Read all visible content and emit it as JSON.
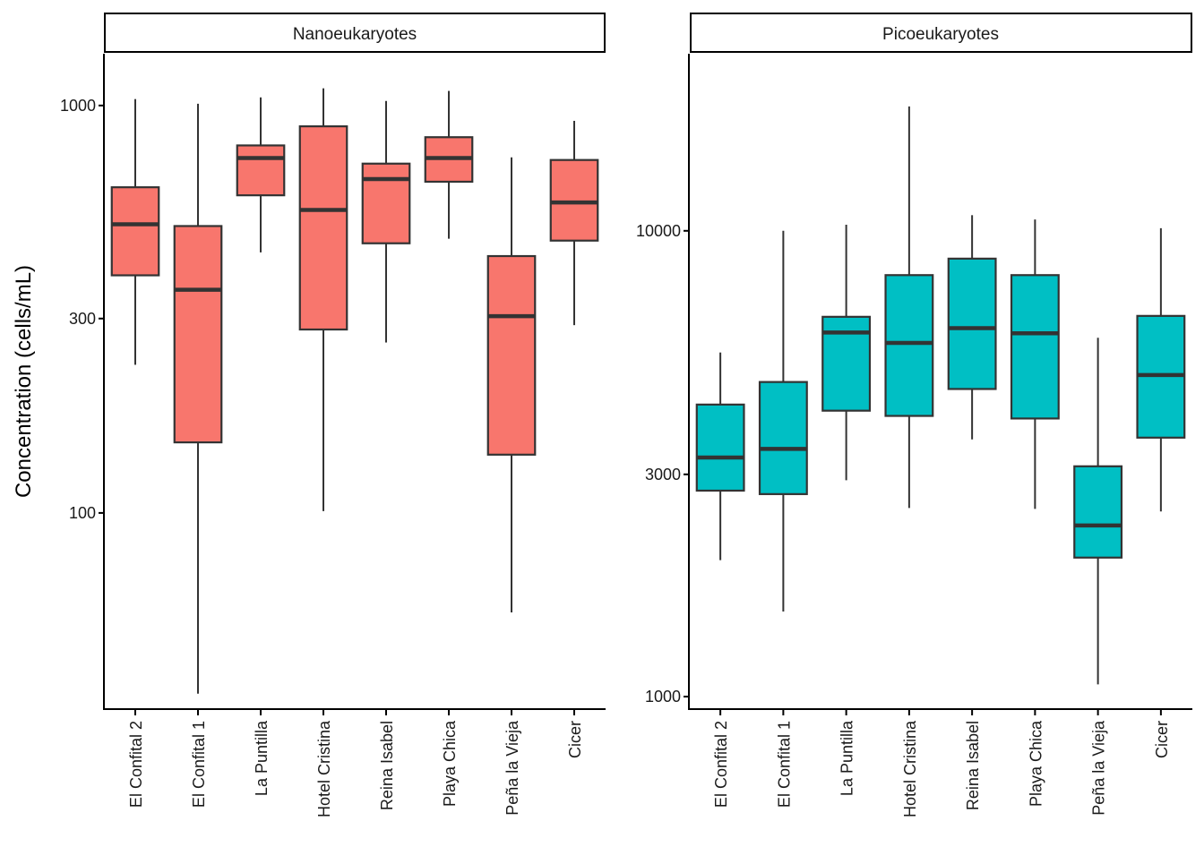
{
  "chart_data": {
    "type": "boxplot",
    "ylabel": "Concentration (cells/mL)",
    "xlabel": "",
    "yscale": "log10",
    "categories": [
      "El Confital 2",
      "El Confital 1",
      "La Puntilla",
      "Hotel Cristina",
      "Reina Isabel",
      "Playa Chica",
      "Peña la Vieja",
      "Cicer"
    ],
    "panels": [
      {
        "title": "Nanoeukaryotes",
        "fill_color": "#F8766D",
        "yticks": [
          100,
          300,
          1000
        ],
        "ytick_labels": [
          "100",
          "300",
          "1000"
        ],
        "ylim": [
          33,
          1340
        ],
        "boxes": [
          {
            "category": "El Confital 2",
            "min": 231,
            "q1": 383,
            "median": 511,
            "q3": 630,
            "max": 1037
          },
          {
            "category": "El Confital 1",
            "min": 36,
            "q1": 149,
            "median": 353,
            "q3": 506,
            "max": 1010
          },
          {
            "category": "La Puntilla",
            "min": 436,
            "q1": 602,
            "median": 743,
            "q3": 798,
            "max": 1047
          },
          {
            "category": "Hotel Cristina",
            "min": 101,
            "q1": 282,
            "median": 554,
            "q3": 889,
            "max": 1102
          },
          {
            "category": "Reina Isabel",
            "min": 262,
            "q1": 459,
            "median": 660,
            "q3": 720,
            "max": 1026
          },
          {
            "category": "Playa Chica",
            "min": 471,
            "q1": 650,
            "median": 743,
            "q3": 836,
            "max": 1086
          },
          {
            "category": "Peña la Vieja",
            "min": 57,
            "q1": 139,
            "median": 304,
            "q3": 427,
            "max": 746
          },
          {
            "category": "Cicer",
            "min": 289,
            "q1": 466,
            "median": 578,
            "q3": 735,
            "max": 917
          }
        ]
      },
      {
        "title": "Picoeukaryotes",
        "fill_color": "#00BFC4",
        "yticks": [
          1000,
          3000,
          10000
        ],
        "ytick_labels": [
          "1000",
          "3000",
          "10000"
        ],
        "ylim": [
          940,
          24000
        ],
        "boxes": [
          {
            "category": "El Confital 2",
            "min": 1963,
            "q1": 2768,
            "median": 3260,
            "q3": 4236,
            "max": 5480
          },
          {
            "category": "El Confital 1",
            "min": 1523,
            "q1": 2721,
            "median": 3402,
            "q3": 4736,
            "max": 10000
          },
          {
            "category": "La Puntilla",
            "min": 2914,
            "q1": 4110,
            "median": 6048,
            "q3": 6537,
            "max": 10306
          },
          {
            "category": "Hotel Cristina",
            "min": 2541,
            "q1": 4005,
            "median": 5744,
            "q3": 8033,
            "max": 18490
          },
          {
            "category": "Reina Isabel",
            "min": 3566,
            "q1": 4575,
            "median": 6180,
            "q3": 8715,
            "max": 10804
          },
          {
            "category": "Playa Chica",
            "min": 2529,
            "q1": 3954,
            "median": 6024,
            "q3": 8033,
            "max": 10576
          },
          {
            "category": "Peña la Vieja",
            "min": 1062,
            "q1": 1988,
            "median": 2331,
            "q3": 3122,
            "max": 5895
          },
          {
            "category": "Cicer",
            "min": 2497,
            "q1": 3597,
            "median": 4901,
            "q3": 6566,
            "max": 10129
          }
        ]
      }
    ]
  }
}
